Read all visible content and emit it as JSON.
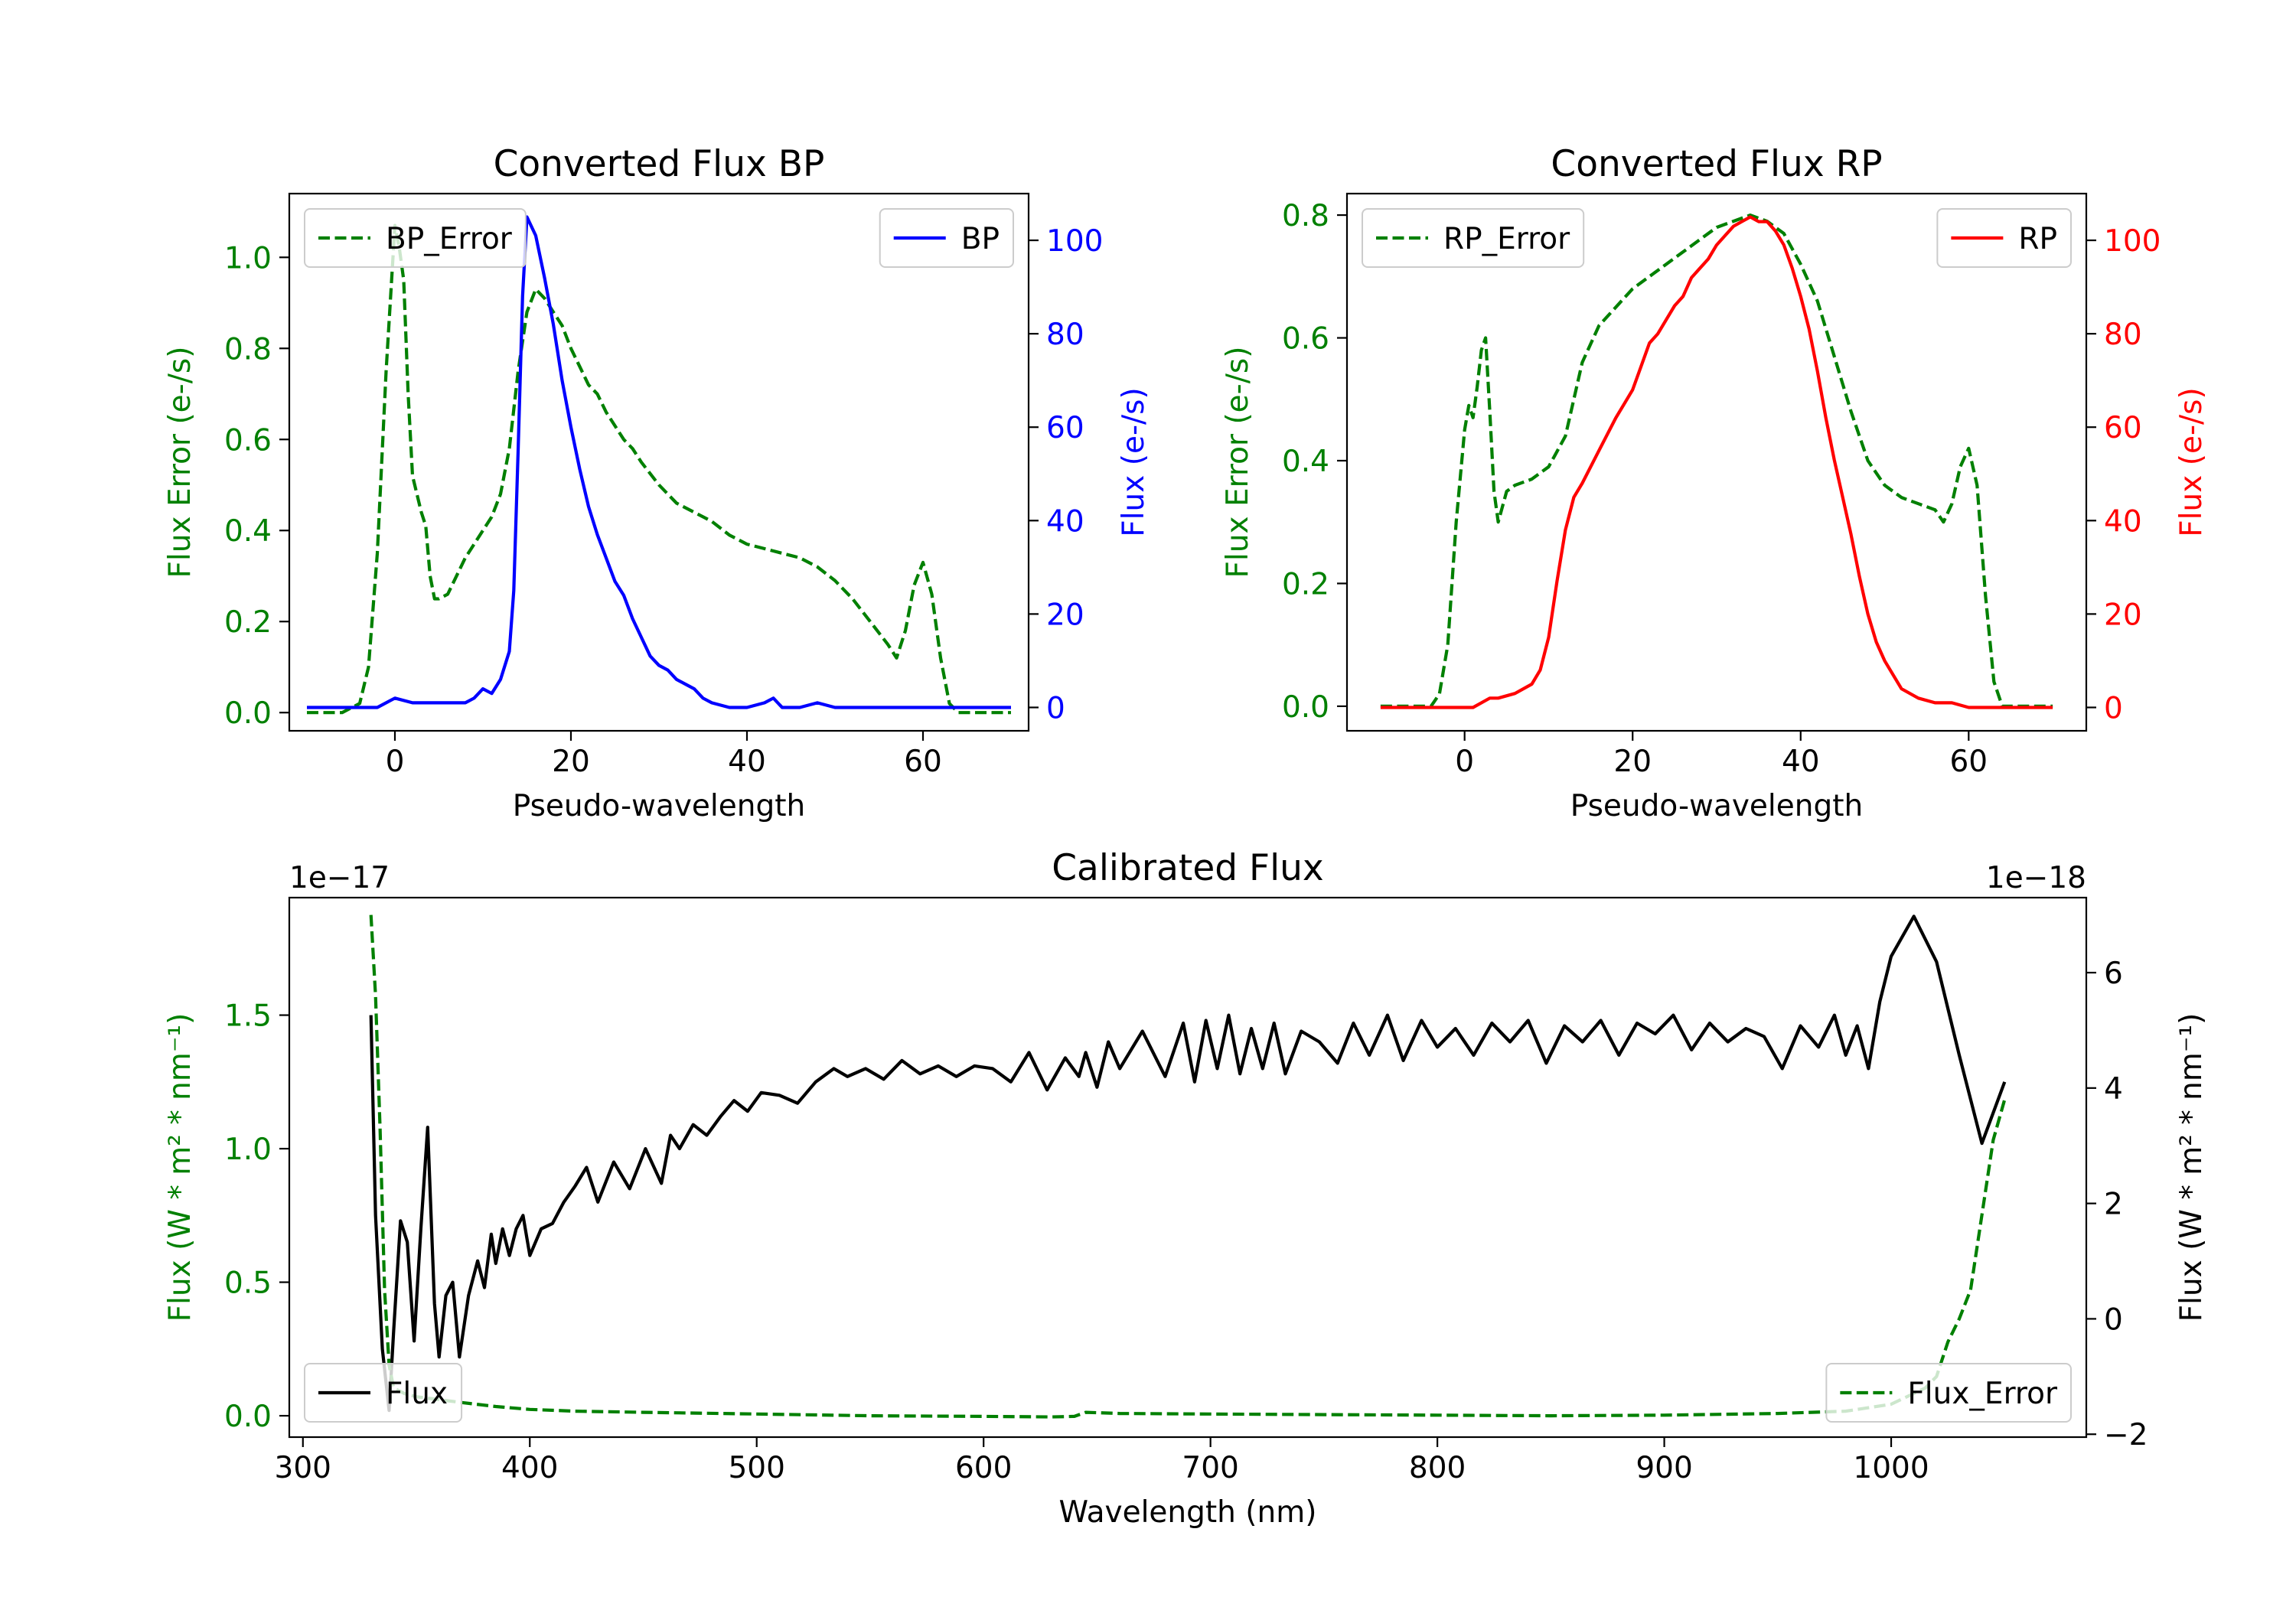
{
  "chart_data": [
    {
      "id": "bp",
      "type": "line",
      "title": "Converted Flux BP",
      "xlabel": "Pseudo-wavelength",
      "ylabel_left": "Flux Error (e-/s)",
      "ylabel_right": "Flux (e-/s)",
      "xlim": [
        -12,
        72
      ],
      "ylim_left": [
        -0.04,
        1.14
      ],
      "ylim_right": [
        -5,
        110
      ],
      "xticks": [
        0,
        20,
        40,
        60
      ],
      "yticks_left": [
        0.0,
        0.2,
        0.4,
        0.6,
        0.8,
        1.0
      ],
      "yticks_right": [
        0,
        20,
        40,
        60,
        80,
        100
      ],
      "ytick_labels_left": [
        "0.0",
        "0.2",
        "0.4",
        "0.6",
        "0.8",
        "1.0"
      ],
      "ytick_labels_right": [
        "0",
        "20",
        "40",
        "60",
        "80",
        "100"
      ],
      "legend_left": "BP_Error",
      "legend_right": "BP",
      "left_color": "#008000",
      "right_color": "#0000ff",
      "series": [
        {
          "name": "BP_Error",
          "axis": "left",
          "style": "dashed",
          "color": "#008000",
          "x": [
            -10,
            -6,
            -4,
            -3,
            -2,
            -1,
            0,
            0.5,
            1,
            1.5,
            2,
            3,
            3.5,
            4,
            4.5,
            5,
            6,
            7,
            8,
            9,
            10,
            11,
            12,
            13,
            14,
            15,
            16,
            17,
            18,
            19,
            20,
            21,
            22,
            23,
            24,
            25,
            26,
            27,
            28,
            30,
            32,
            34,
            36,
            38,
            40,
            42,
            44,
            46,
            48,
            50,
            52,
            54,
            56,
            57,
            58,
            59,
            60,
            61,
            62,
            63,
            64,
            66,
            68,
            70
          ],
          "values": [
            0.0,
            0.0,
            0.02,
            0.1,
            0.35,
            0.75,
            1.07,
            1.02,
            0.95,
            0.7,
            0.52,
            0.44,
            0.41,
            0.3,
            0.25,
            0.25,
            0.26,
            0.3,
            0.34,
            0.37,
            0.4,
            0.43,
            0.48,
            0.58,
            0.75,
            0.88,
            0.93,
            0.91,
            0.88,
            0.85,
            0.8,
            0.76,
            0.72,
            0.7,
            0.66,
            0.63,
            0.6,
            0.58,
            0.55,
            0.5,
            0.46,
            0.44,
            0.42,
            0.39,
            0.37,
            0.36,
            0.35,
            0.34,
            0.32,
            0.29,
            0.25,
            0.2,
            0.15,
            0.12,
            0.18,
            0.28,
            0.33,
            0.26,
            0.12,
            0.02,
            0.0,
            0.0,
            0.0,
            0.0
          ]
        },
        {
          "name": "BP",
          "axis": "right",
          "style": "solid",
          "color": "#0000ff",
          "x": [
            -10,
            -6,
            -2,
            0,
            2,
            4,
            6,
            8,
            9,
            10,
            11,
            12,
            13,
            13.5,
            14,
            14.5,
            15,
            16,
            17,
            18,
            19,
            20,
            21,
            22,
            23,
            24,
            25,
            26,
            27,
            28,
            29,
            30,
            31,
            32,
            33,
            34,
            35,
            36,
            38,
            40,
            42,
            43,
            44,
            46,
            48,
            50,
            55,
            60,
            65,
            70
          ],
          "values": [
            0,
            0,
            0,
            2,
            1,
            1,
            1,
            1,
            2,
            4,
            3,
            6,
            12,
            25,
            55,
            88,
            105,
            101,
            92,
            82,
            70,
            60,
            51,
            43,
            37,
            32,
            27,
            24,
            19,
            15,
            11,
            9,
            8,
            6,
            5,
            4,
            2,
            1,
            0,
            0,
            1,
            2,
            0,
            0,
            1,
            0,
            0,
            0,
            0,
            0
          ]
        }
      ]
    },
    {
      "id": "rp",
      "type": "line",
      "title": "Converted Flux RP",
      "xlabel": "Pseudo-wavelength",
      "ylabel_left": "Flux Error (e-/s)",
      "ylabel_right": "Flux (e-/s)",
      "xlim": [
        -14,
        74
      ],
      "ylim_left": [
        -0.04,
        0.835
      ],
      "ylim_right": [
        -5,
        110
      ],
      "xticks": [
        0,
        20,
        40,
        60
      ],
      "yticks_left": [
        0.0,
        0.2,
        0.4,
        0.6,
        0.8
      ],
      "yticks_right": [
        0,
        20,
        40,
        60,
        80,
        100
      ],
      "ytick_labels_left": [
        "0.0",
        "0.2",
        "0.4",
        "0.6",
        "0.8"
      ],
      "ytick_labels_right": [
        "0",
        "20",
        "40",
        "60",
        "80",
        "100"
      ],
      "legend_left": "RP_Error",
      "legend_right": "RP",
      "left_color": "#008000",
      "right_color": "#ff0000",
      "series": [
        {
          "name": "RP_Error",
          "axis": "left",
          "style": "dashed",
          "color": "#008000",
          "x": [
            -10,
            -5,
            -4,
            -3,
            -2,
            -1,
            0,
            0.5,
            1,
            1.5,
            2,
            2.5,
            3,
            3.5,
            4,
            5,
            6,
            8,
            10,
            12,
            14,
            16,
            18,
            20,
            22,
            24,
            26,
            28,
            30,
            32,
            34,
            36,
            38,
            40,
            42,
            44,
            46,
            48,
            50,
            52,
            54,
            56,
            57,
            58,
            59,
            60,
            61,
            62,
            63,
            64,
            66,
            68,
            70
          ],
          "values": [
            0.0,
            0.0,
            0.0,
            0.02,
            0.1,
            0.3,
            0.45,
            0.49,
            0.47,
            0.52,
            0.58,
            0.6,
            0.48,
            0.35,
            0.3,
            0.35,
            0.36,
            0.37,
            0.39,
            0.44,
            0.56,
            0.62,
            0.65,
            0.68,
            0.7,
            0.72,
            0.74,
            0.76,
            0.78,
            0.79,
            0.8,
            0.79,
            0.77,
            0.72,
            0.66,
            0.57,
            0.48,
            0.4,
            0.36,
            0.34,
            0.33,
            0.32,
            0.3,
            0.33,
            0.39,
            0.42,
            0.36,
            0.18,
            0.04,
            0.0,
            0.0,
            0.0,
            0.0
          ]
        },
        {
          "name": "RP",
          "axis": "right",
          "style": "solid",
          "color": "#ff0000",
          "x": [
            -10,
            -6,
            -2,
            0,
            1,
            2,
            3,
            4,
            6,
            8,
            9,
            10,
            11,
            12,
            13,
            14,
            16,
            18,
            19,
            20,
            21,
            22,
            23,
            24,
            25,
            26,
            27,
            28,
            29,
            30,
            31,
            32,
            33,
            34,
            35,
            36,
            37,
            38,
            39,
            40,
            41,
            42,
            43,
            44,
            45,
            46,
            47,
            48,
            49,
            50,
            52,
            54,
            56,
            58,
            60,
            62,
            64,
            66,
            68,
            70
          ],
          "values": [
            0,
            0,
            0,
            0,
            0,
            1,
            2,
            2,
            3,
            5,
            8,
            15,
            27,
            38,
            45,
            48,
            55,
            62,
            65,
            68,
            73,
            78,
            80,
            83,
            86,
            88,
            92,
            94,
            96,
            99,
            101,
            103,
            104,
            105,
            104,
            104,
            102,
            99,
            94,
            88,
            81,
            72,
            62,
            53,
            45,
            37,
            28,
            20,
            14,
            10,
            4,
            2,
            1,
            1,
            0,
            0,
            0,
            0,
            0,
            0
          ]
        }
      ]
    },
    {
      "id": "cal",
      "type": "line",
      "title": "Calibrated Flux",
      "xlabel": "Wavelength (nm)",
      "ylabel_left": "Flux (W * m² * nm⁻¹)",
      "ylabel_right": "Flux (W * m² * nm⁻¹)",
      "offset_left": "1e−17",
      "offset_right": "1e−18",
      "xlim": [
        294,
        1086
      ],
      "ylim_left": [
        -0.08,
        1.94
      ],
      "ylim_right": [
        -2.05,
        7.3
      ],
      "xticks": [
        300,
        400,
        500,
        600,
        700,
        800,
        900,
        1000
      ],
      "yticks_left": [
        0.0,
        0.5,
        1.0,
        1.5
      ],
      "yticks_right": [
        -2,
        0,
        2,
        4,
        6
      ],
      "ytick_labels_left": [
        "0.0",
        "0.5",
        "1.0",
        "1.5"
      ],
      "ytick_labels_right": [
        "−2",
        "0",
        "2",
        "4",
        "6"
      ],
      "legend_left": "Flux",
      "legend_right": "Flux_Error",
      "left_color": "#008000",
      "right_color": "#000000",
      "series": [
        {
          "name": "Flux",
          "axis": "left",
          "style": "solid",
          "color": "#000000",
          "x": [
            330,
            332,
            335,
            338,
            340,
            343,
            346,
            349,
            352,
            355,
            358,
            360,
            363,
            366,
            369,
            373,
            377,
            380,
            383,
            385,
            388,
            391,
            394,
            397,
            400,
            405,
            410,
            415,
            420,
            425,
            430,
            437,
            444,
            451,
            458,
            462,
            466,
            472,
            478,
            484,
            490,
            496,
            502,
            510,
            518,
            526,
            534,
            540,
            548,
            556,
            564,
            572,
            580,
            588,
            596,
            604,
            612,
            620,
            628,
            636,
            642,
            645,
            650,
            655,
            660,
            670,
            680,
            688,
            693,
            698,
            703,
            708,
            713,
            718,
            723,
            728,
            733,
            740,
            748,
            756,
            763,
            770,
            778,
            785,
            793,
            800,
            808,
            816,
            824,
            832,
            840,
            848,
            856,
            864,
            872,
            880,
            888,
            896,
            904,
            912,
            920,
            928,
            936,
            944,
            952,
            960,
            968,
            975,
            980,
            985,
            990,
            995,
            1000,
            1010,
            1020,
            1030,
            1040,
            1050
          ],
          "values": [
            1.5,
            0.75,
            0.25,
            0.02,
            0.32,
            0.73,
            0.65,
            0.28,
            0.7,
            1.08,
            0.42,
            0.22,
            0.45,
            0.5,
            0.22,
            0.45,
            0.58,
            0.48,
            0.68,
            0.57,
            0.7,
            0.6,
            0.7,
            0.75,
            0.6,
            0.7,
            0.72,
            0.8,
            0.86,
            0.93,
            0.8,
            0.95,
            0.85,
            1.0,
            0.87,
            1.05,
            1.0,
            1.09,
            1.05,
            1.12,
            1.18,
            1.14,
            1.21,
            1.2,
            1.17,
            1.25,
            1.3,
            1.27,
            1.3,
            1.26,
            1.33,
            1.28,
            1.31,
            1.27,
            1.31,
            1.3,
            1.25,
            1.36,
            1.22,
            1.34,
            1.27,
            1.36,
            1.23,
            1.4,
            1.3,
            1.44,
            1.27,
            1.47,
            1.25,
            1.48,
            1.3,
            1.5,
            1.28,
            1.45,
            1.3,
            1.47,
            1.28,
            1.44,
            1.4,
            1.32,
            1.47,
            1.35,
            1.5,
            1.33,
            1.48,
            1.38,
            1.45,
            1.35,
            1.47,
            1.4,
            1.48,
            1.32,
            1.46,
            1.4,
            1.48,
            1.35,
            1.47,
            1.43,
            1.5,
            1.37,
            1.47,
            1.4,
            1.45,
            1.42,
            1.3,
            1.46,
            1.38,
            1.5,
            1.35,
            1.46,
            1.3,
            1.55,
            1.72,
            1.87,
            1.7,
            1.35,
            1.02,
            1.25
          ]
        },
        {
          "name": "Flux_Error",
          "axis": "right",
          "style": "dashed",
          "color": "#008000",
          "x": [
            330,
            332,
            334,
            336,
            338,
            340,
            345,
            350,
            360,
            370,
            385,
            400,
            420,
            450,
            500,
            550,
            600,
            630,
            640,
            645,
            660,
            700,
            750,
            800,
            850,
            900,
            950,
            980,
            1000,
            1015,
            1020,
            1025,
            1030,
            1035,
            1040,
            1045,
            1050
          ],
          "values": [
            7.0,
            5.6,
            3.3,
            0.5,
            -0.8,
            -1.2,
            -1.3,
            -1.35,
            -1.4,
            -1.45,
            -1.52,
            -1.57,
            -1.6,
            -1.62,
            -1.65,
            -1.68,
            -1.69,
            -1.7,
            -1.69,
            -1.62,
            -1.64,
            -1.65,
            -1.66,
            -1.67,
            -1.68,
            -1.67,
            -1.64,
            -1.6,
            -1.48,
            -1.2,
            -1.0,
            -0.4,
            0.0,
            0.5,
            1.8,
            3.1,
            3.8
          ]
        }
      ]
    }
  ]
}
